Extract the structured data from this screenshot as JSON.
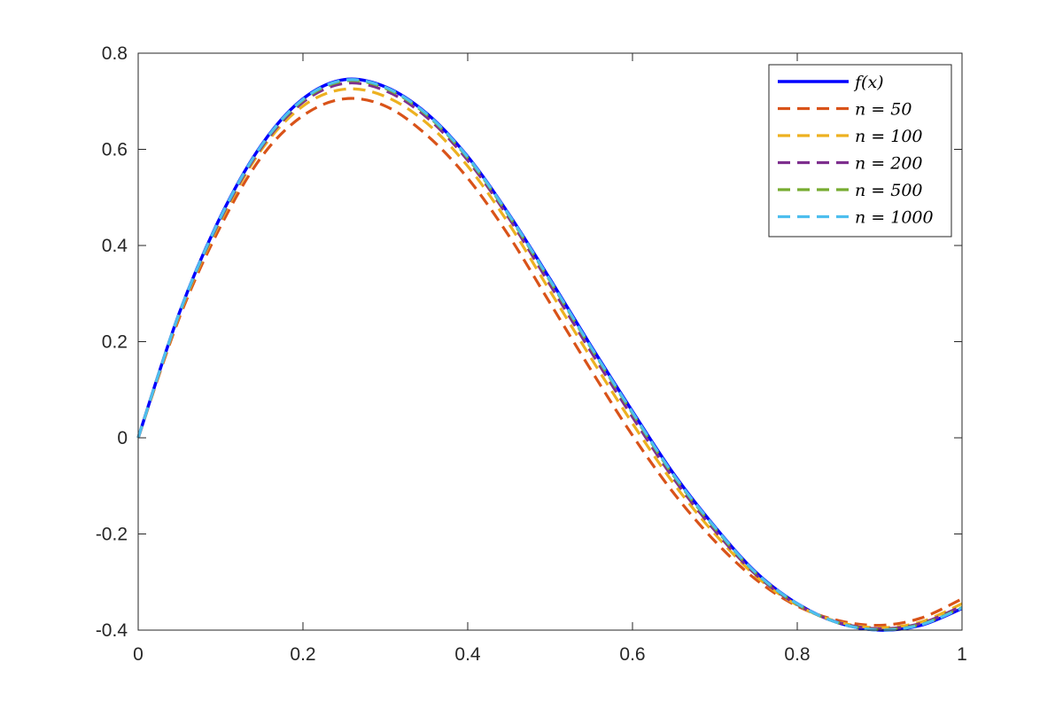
{
  "chart_data": {
    "type": "line",
    "title": "",
    "xlabel": "",
    "ylabel": "",
    "xlim": [
      0,
      1
    ],
    "ylim": [
      -0.4,
      0.8
    ],
    "xticks": [
      0,
      0.2,
      0.4,
      0.6,
      0.8,
      1
    ],
    "xtick_labels": [
      "0",
      "0.2",
      "0.4",
      "0.6",
      "0.8",
      "1"
    ],
    "yticks": [
      -0.4,
      -0.2,
      0,
      0.2,
      0.4,
      0.6,
      0.8
    ],
    "ytick_labels": [
      "-0.4",
      "-0.2",
      "0",
      "0.2",
      "0.4",
      "0.6",
      "0.8"
    ],
    "grid": false,
    "legend_position": "top-right",
    "x": [
      0,
      0.05,
      0.1,
      0.15,
      0.2,
      0.25,
      0.3,
      0.35,
      0.4,
      0.45,
      0.5,
      0.55,
      0.6,
      0.65,
      0.7,
      0.75,
      0.8,
      0.85,
      0.9,
      0.95,
      1.0
    ],
    "series": [
      {
        "name": "f(x)",
        "color": "#0000ff",
        "style": "solid",
        "values": [
          0,
          0.26,
          0.46,
          0.61,
          0.705,
          0.745,
          0.73,
          0.675,
          0.585,
          0.465,
          0.33,
          0.19,
          0.055,
          -0.075,
          -0.185,
          -0.28,
          -0.345,
          -0.385,
          -0.4,
          -0.39,
          -0.355
        ]
      },
      {
        "name": "n = 50",
        "color": "#d95319",
        "style": "dashed",
        "values": [
          0,
          0.25,
          0.44,
          0.585,
          0.67,
          0.705,
          0.69,
          0.63,
          0.54,
          0.42,
          0.28,
          0.14,
          0.005,
          -0.115,
          -0.215,
          -0.295,
          -0.35,
          -0.38,
          -0.39,
          -0.375,
          -0.335
        ]
      },
      {
        "name": "n = 100",
        "color": "#edb120",
        "style": "dashed",
        "values": [
          0,
          0.255,
          0.45,
          0.6,
          0.69,
          0.725,
          0.71,
          0.655,
          0.565,
          0.445,
          0.305,
          0.165,
          0.03,
          -0.095,
          -0.2,
          -0.288,
          -0.348,
          -0.383,
          -0.395,
          -0.383,
          -0.345
        ]
      },
      {
        "name": "n = 200",
        "color": "#7e2f8e",
        "style": "dashed",
        "values": [
          0,
          0.258,
          0.455,
          0.605,
          0.698,
          0.737,
          0.722,
          0.667,
          0.577,
          0.457,
          0.318,
          0.178,
          0.043,
          -0.085,
          -0.193,
          -0.285,
          -0.347,
          -0.384,
          -0.397,
          -0.386,
          -0.35
        ]
      },
      {
        "name": "n = 500",
        "color": "#77ac30",
        "style": "dashed",
        "values": [
          0,
          0.259,
          0.458,
          0.608,
          0.702,
          0.742,
          0.727,
          0.672,
          0.582,
          0.462,
          0.326,
          0.186,
          0.051,
          -0.079,
          -0.188,
          -0.282,
          -0.346,
          -0.385,
          -0.399,
          -0.388,
          -0.353
        ]
      },
      {
        "name": "n = 1000",
        "color": "#4dbeee",
        "style": "dashed",
        "values": [
          0,
          0.26,
          0.459,
          0.609,
          0.704,
          0.744,
          0.729,
          0.674,
          0.584,
          0.464,
          0.328,
          0.188,
          0.053,
          -0.077,
          -0.186,
          -0.281,
          -0.345,
          -0.385,
          -0.4,
          -0.389,
          -0.354
        ]
      }
    ],
    "legend_labels": [
      "f(x)",
      "n = 50",
      "n = 100",
      "n = 200",
      "n = 500",
      "n = 1000"
    ]
  }
}
